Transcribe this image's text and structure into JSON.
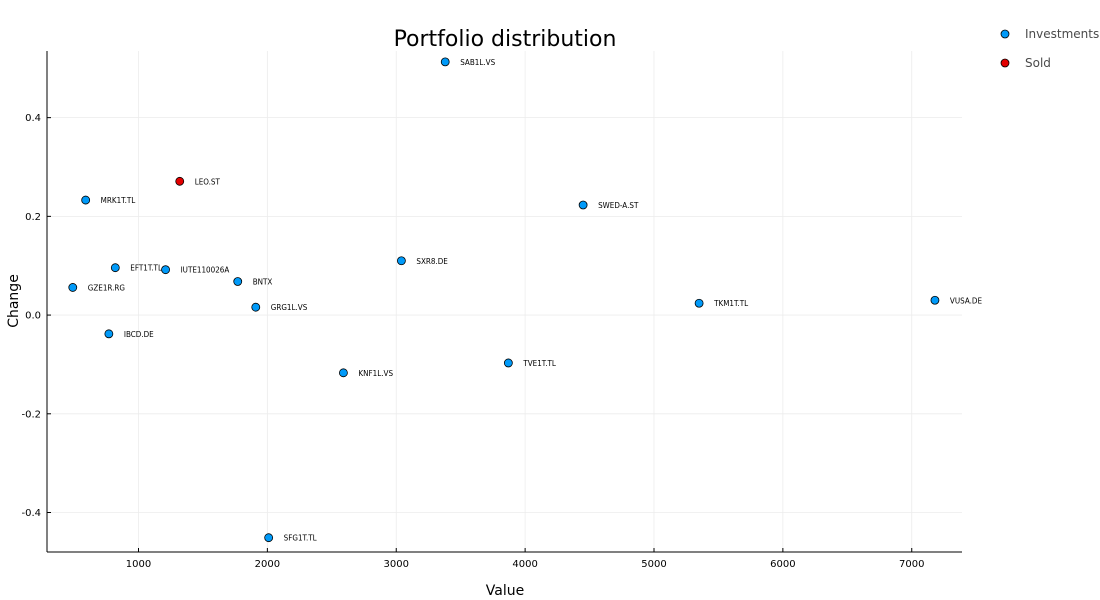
{
  "chart_data": {
    "type": "scatter",
    "title": "Portfolio distribution",
    "xlabel": "Value",
    "ylabel": "Change",
    "xlim": [
      290,
      7390
    ],
    "ylim": [
      -0.48,
      0.535
    ],
    "xticks": [
      1000,
      2000,
      3000,
      4000,
      5000,
      6000,
      7000
    ],
    "yticks": [
      -0.4,
      -0.2,
      0.0,
      0.2,
      0.4
    ],
    "ytick_labels": [
      "-0.4",
      "-0.2",
      "0.0",
      "0.2",
      "0.4"
    ],
    "grid": true,
    "legend_position": "outside-top-right",
    "series": [
      {
        "name": "Investments",
        "color": "#009af9",
        "points": [
          {
            "label": "SAB1L.VS",
            "x": 3380,
            "y": 0.513
          },
          {
            "label": "MRK1T.TL",
            "x": 590,
            "y": 0.233
          },
          {
            "label": "SWED-A.ST",
            "x": 4450,
            "y": 0.223
          },
          {
            "label": "EFT1T.TL",
            "x": 820,
            "y": 0.096
          },
          {
            "label": "IUTE110026A",
            "x": 1210,
            "y": 0.092
          },
          {
            "label": "SXR8.DE",
            "x": 3040,
            "y": 0.11
          },
          {
            "label": "BNTX",
            "x": 1770,
            "y": 0.068
          },
          {
            "label": "GZE1R.RG",
            "x": 490,
            "y": 0.056
          },
          {
            "label": "GRG1L.VS",
            "x": 1910,
            "y": 0.016
          },
          {
            "label": "TKM1T.TL",
            "x": 5350,
            "y": 0.024
          },
          {
            "label": "VUSA.DE",
            "x": 7180,
            "y": 0.03
          },
          {
            "label": "IBCD.DE",
            "x": 770,
            "y": -0.038
          },
          {
            "label": "KNF1L.VS",
            "x": 2590,
            "y": -0.117
          },
          {
            "label": "TVE1T.TL",
            "x": 3870,
            "y": -0.097
          },
          {
            "label": "SFG1T.TL",
            "x": 2010,
            "y": -0.451
          }
        ]
      },
      {
        "name": "Sold",
        "color": "#e30000",
        "points": [
          {
            "label": "LEO.ST",
            "x": 1320,
            "y": 0.271
          }
        ]
      }
    ]
  }
}
